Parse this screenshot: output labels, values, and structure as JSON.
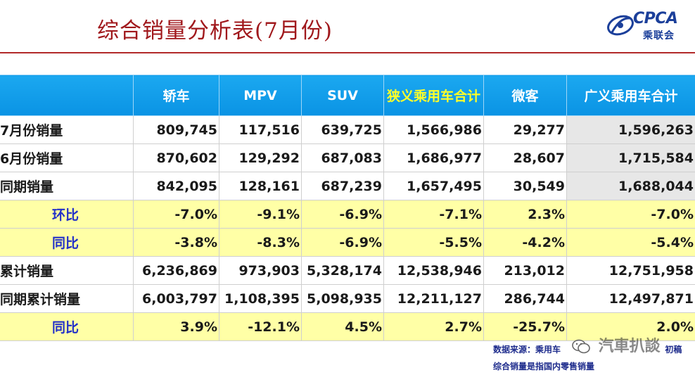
{
  "header": {
    "title": "综合销量分析表(7月份)",
    "logo_en": "CPCA",
    "logo_cn": "乘联会"
  },
  "table": {
    "columns": [
      "",
      "轿车",
      "MPV",
      "SUV",
      "狭义乘用车合计",
      "微客",
      "广义乘用车合计"
    ],
    "rows": [
      {
        "label": "7月份销量",
        "cells": [
          "809,745",
          "117,516",
          "639,725",
          "1,566,986",
          "29,277",
          "1,596,263"
        ]
      },
      {
        "label": "6月份销量",
        "cells": [
          "870,602",
          "129,292",
          "687,083",
          "1,686,977",
          "28,607",
          "1,715,584"
        ]
      },
      {
        "label": "同期销量",
        "cells": [
          "842,095",
          "128,161",
          "687,239",
          "1,657,495",
          "30,549",
          "1,688,044"
        ]
      },
      {
        "label": "环比",
        "cells": [
          "-7.0%",
          "-9.1%",
          "-6.9%",
          "-7.1%",
          "2.3%",
          "-7.0%"
        ]
      },
      {
        "label": "同比",
        "cells": [
          "-3.8%",
          "-8.3%",
          "-6.9%",
          "-5.5%",
          "-4.2%",
          "-5.4%"
        ]
      },
      {
        "label": "累计销量",
        "cells": [
          "6,236,869",
          "973,903",
          "5,328,174",
          "12,538,946",
          "213,012",
          "12,751,958"
        ]
      },
      {
        "label": "同期累计销量",
        "cells": [
          "6,003,797",
          "1,108,395",
          "5,098,935",
          "12,211,127",
          "286,744",
          "12,497,871"
        ]
      },
      {
        "label": "同比",
        "cells": [
          "3.9%",
          "-12.1%",
          "4.5%",
          "2.7%",
          "-25.7%",
          "2.0%"
        ]
      }
    ]
  },
  "footer": {
    "source_prefix": "数据来源：乘用车",
    "source_suffix": "初稿",
    "note": "综合销量是指国内零售销量",
    "watermark": "汽車扒談"
  },
  "colors": {
    "title": "#a0181c",
    "header_bg": "#0a93e4",
    "highlight_header_text": "#ffff28",
    "ratio_row_bg": "#ffffa6",
    "ratio_label": "#2330c8",
    "logo": "#1b3f9a"
  }
}
